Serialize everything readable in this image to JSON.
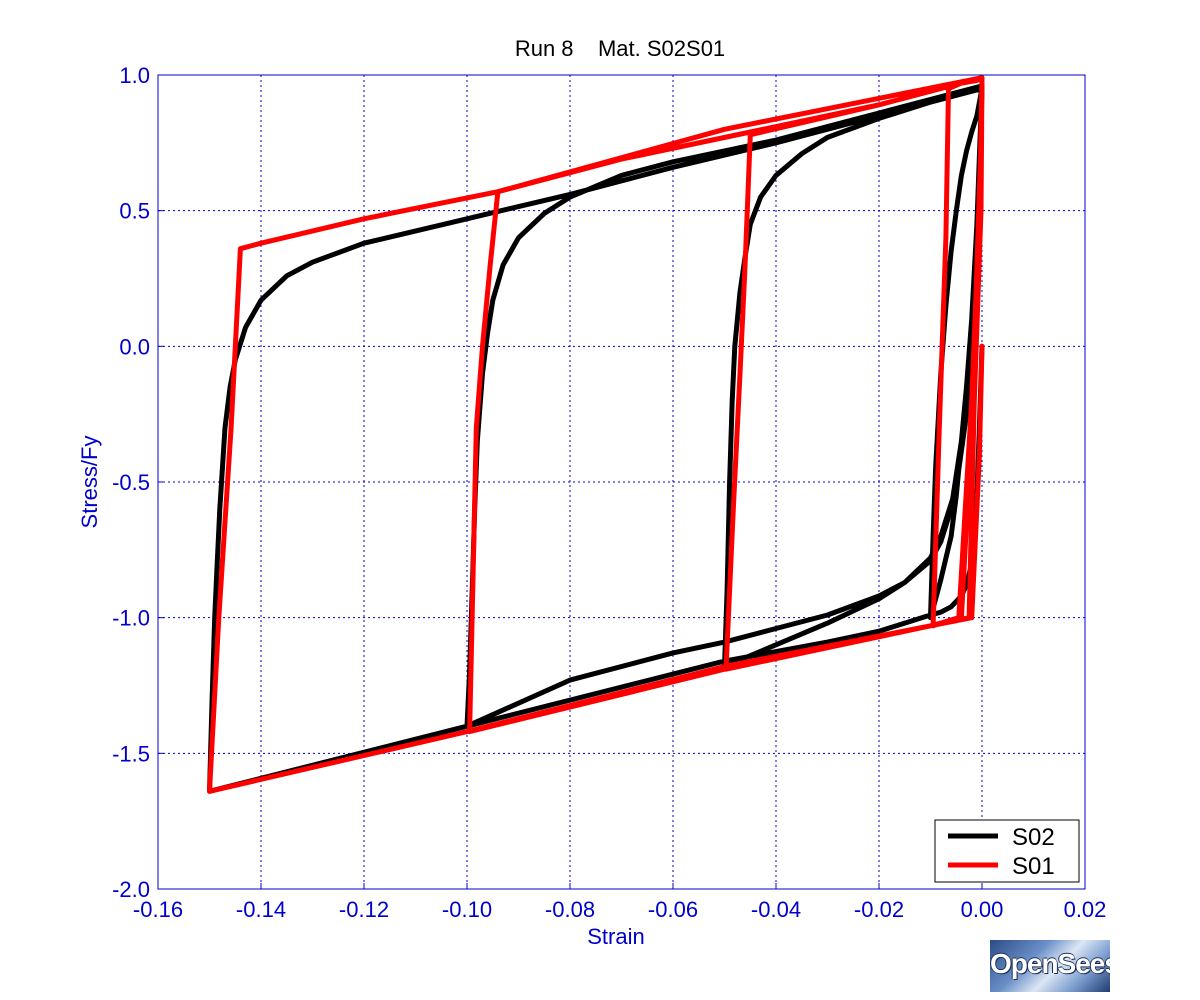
{
  "chart_data": {
    "type": "line",
    "title": "Run 8    Mat. S02S01",
    "xlabel": "Strain",
    "ylabel": "Stress/Fy",
    "xlim": [
      -0.16,
      0.02
    ],
    "ylim": [
      -2.0,
      1.0
    ],
    "xticks": [
      "-0.16",
      "-0.14",
      "-0.12",
      "-0.10",
      "-0.08",
      "-0.06",
      "-0.04",
      "-0.02",
      "0.00",
      "0.02"
    ],
    "yticks": [
      "1.0",
      "0.5",
      "0.0",
      "-0.5",
      "-1.0",
      "-1.5",
      "-2.0"
    ],
    "xtick_values": [
      -0.16,
      -0.14,
      -0.12,
      -0.1,
      -0.08,
      -0.06,
      -0.04,
      -0.02,
      0.0,
      0.02
    ],
    "ytick_values": [
      1.0,
      0.5,
      0.0,
      -0.5,
      -1.0,
      -1.5,
      -2.0
    ],
    "grid": true,
    "legend_position": "bottom-right",
    "series": [
      {
        "name": "S02",
        "color": "#000000",
        "x": [
          0.0,
          -0.0005,
          -0.001,
          -0.0015,
          -0.002,
          -0.003,
          -0.004,
          -0.006,
          -0.008,
          -0.01,
          -0.015,
          -0.02,
          -0.03,
          -0.05,
          -0.1,
          -0.15,
          -0.1495,
          -0.149,
          -0.1485,
          -0.148,
          -0.1475,
          -0.147,
          -0.146,
          -0.145,
          -0.143,
          -0.14,
          -0.135,
          -0.13,
          -0.12,
          -0.1,
          -0.08,
          -0.06,
          -0.04,
          -0.02,
          0.0,
          -0.0005,
          -0.001,
          -0.002,
          -0.003,
          -0.005,
          -0.008,
          -0.01,
          -0.015,
          -0.02,
          -0.03,
          -0.04,
          -0.05,
          -0.06,
          -0.08,
          -0.1,
          -0.0995,
          -0.099,
          -0.0985,
          -0.098,
          -0.097,
          -0.096,
          -0.095,
          -0.093,
          -0.09,
          -0.085,
          -0.08,
          -0.07,
          -0.06,
          -0.04,
          -0.02,
          0.0,
          -0.0005,
          -0.001,
          -0.002,
          -0.003,
          -0.004,
          -0.006,
          -0.008,
          -0.01,
          -0.015,
          -0.02,
          -0.03,
          -0.05,
          -0.0495,
          -0.049,
          -0.0485,
          -0.048,
          -0.047,
          -0.046,
          -0.045,
          -0.043,
          -0.04,
          -0.035,
          -0.03,
          -0.02,
          -0.01,
          0.0,
          -0.0003,
          -0.001,
          -0.002,
          -0.003,
          -0.004,
          -0.005,
          -0.006,
          -0.008,
          -0.01,
          -0.0095,
          -0.009,
          -0.008,
          -0.007,
          -0.006,
          -0.005,
          -0.004,
          -0.003,
          -0.002,
          -0.001,
          0.0
        ],
        "y": [
          0.0,
          -0.3,
          -0.55,
          -0.7,
          -0.8,
          -0.88,
          -0.92,
          -0.96,
          -0.98,
          -0.99,
          -1.02,
          -1.05,
          -1.09,
          -1.16,
          -1.4,
          -1.64,
          -1.3,
          -1.0,
          -0.8,
          -0.6,
          -0.45,
          -0.3,
          -0.15,
          -0.05,
          0.07,
          0.17,
          0.26,
          0.31,
          0.38,
          0.47,
          0.56,
          0.66,
          0.75,
          0.85,
          0.95,
          0.6,
          0.35,
          0.0,
          -0.25,
          -0.52,
          -0.7,
          -0.78,
          -0.87,
          -0.92,
          -0.99,
          -1.04,
          -1.09,
          -1.13,
          -1.23,
          -1.4,
          -1.2,
          -0.9,
          -0.6,
          -0.35,
          -0.1,
          0.05,
          0.17,
          0.3,
          0.4,
          0.49,
          0.55,
          0.63,
          0.68,
          0.76,
          0.86,
          0.96,
          0.7,
          0.45,
          0.1,
          -0.15,
          -0.35,
          -0.6,
          -0.72,
          -0.79,
          -0.87,
          -0.93,
          -1.02,
          -1.18,
          -0.9,
          -0.5,
          -0.2,
          0.0,
          0.2,
          0.33,
          0.45,
          0.55,
          0.63,
          0.71,
          0.77,
          0.84,
          0.9,
          0.96,
          0.78,
          0.45,
          0.1,
          -0.15,
          -0.35,
          -0.55,
          -0.7,
          -0.86,
          -1.0,
          -0.7,
          -0.45,
          -0.1,
          0.15,
          0.35,
          0.5,
          0.63,
          0.72,
          0.79,
          0.85,
          0.95
        ]
      },
      {
        "name": "S01",
        "color": "#ff0000",
        "x": [
          0.0,
          -0.0005,
          -0.002,
          -0.01,
          -0.05,
          -0.1,
          -0.15,
          -0.1482,
          -0.1458,
          -0.144,
          -0.14,
          -0.12,
          -0.094,
          -0.05,
          0.0,
          -0.0002,
          -0.0015,
          -0.0025,
          -0.01,
          -0.05,
          -0.0995,
          -0.0982,
          -0.097,
          -0.0955,
          -0.0945,
          -0.094,
          -0.07,
          -0.045,
          -0.02,
          0.0,
          -0.0003,
          -0.002,
          -0.004,
          -0.01,
          -0.0497,
          -0.0483,
          -0.047,
          -0.046,
          -0.045,
          -0.02,
          0.0,
          -0.0003,
          -0.002,
          -0.0045,
          -0.008,
          -0.0095,
          -0.0083,
          -0.007,
          -0.0065,
          -0.004,
          -0.001,
          0.0
        ],
        "y": [
          0.0,
          -0.4,
          -1.0,
          -1.03,
          -1.18,
          -1.42,
          -1.64,
          -1.0,
          -0.3,
          0.36,
          0.38,
          0.47,
          0.57,
          0.8,
          0.99,
          0.5,
          -0.2,
          -1.0,
          -1.03,
          -1.19,
          -1.42,
          -0.3,
          0.0,
          0.3,
          0.48,
          0.57,
          0.69,
          0.79,
          0.89,
          0.99,
          0.7,
          -0.3,
          -1.0,
          -1.03,
          -1.19,
          -0.6,
          -0.1,
          0.3,
          0.78,
          0.89,
          0.99,
          0.6,
          -0.2,
          -1.0,
          -1.02,
          -1.03,
          -0.3,
          0.4,
          0.95,
          0.97,
          0.98,
          0.99
        ]
      }
    ]
  }
}
